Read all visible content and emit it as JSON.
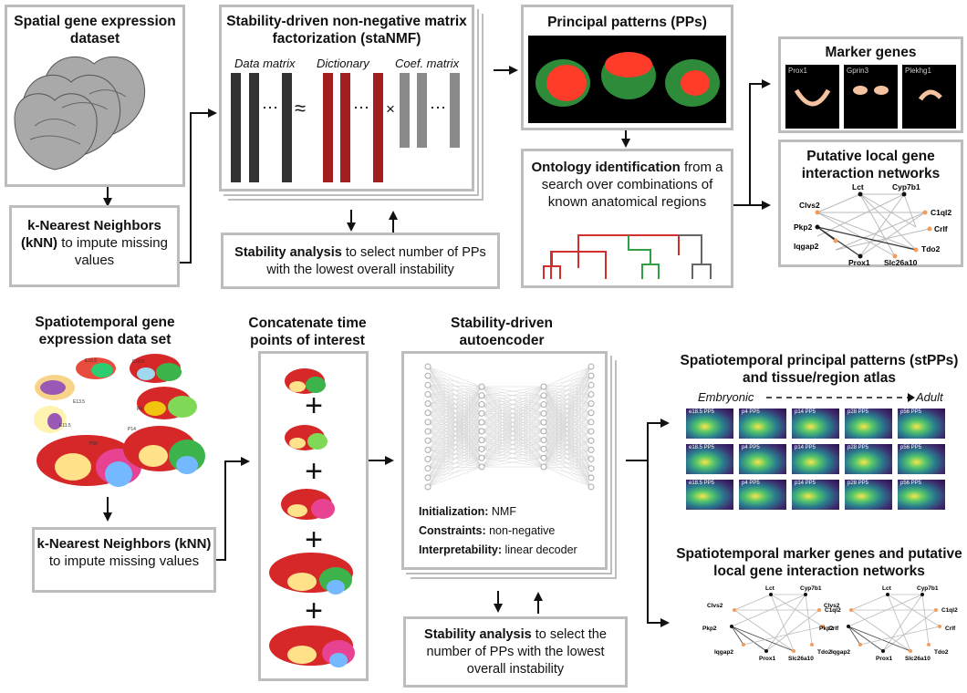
{
  "top": {
    "dataset_title": "Spatial gene expression dataset",
    "knn_bold": "k-Nearest Neighbors (kNN)",
    "knn_rest": "to impute missing values",
    "stanmf_title": "Stability-driven non-negative matrix factorization (staNMF)",
    "labels": {
      "data_matrix": "Data matrix",
      "dictionary": "Dictionary",
      "coef_matrix": "Coef. matrix",
      "approx": "≈",
      "times": "×",
      "dots": "⋯"
    },
    "stability_bold": "Stability analysis",
    "stability_rest": "to select number of PPs with the lowest overall instability",
    "pp_title": "Principal patterns (PPs)",
    "ontology_bold": "Ontology identification",
    "ontology_rest": "from a search over combinations of known anatomical regions",
    "marker_title": "Marker genes",
    "marker_genes": [
      "Prox1",
      "Gprin3",
      "Plekhg1"
    ],
    "network_title": "Putative local gene interaction networks",
    "network_nodes": [
      "Lct",
      "Cyp7b1",
      "Clvs2",
      "C1ql2",
      "Pkp2",
      "Crlf",
      "Iqgap2",
      "Tdo2",
      "Prox1",
      "Slc26a10"
    ]
  },
  "bottom": {
    "dataset_title": "Spatiotemporal gene expression data set",
    "atlas_labels": [
      "E15.5",
      "E18.5",
      "E13.5",
      "P4",
      "E11.5",
      "P14",
      "P56",
      "P28"
    ],
    "knn_bold": "k-Nearest Neighbors (kNN)",
    "knn_rest": "to impute missing values",
    "concat_title": "Concatenate time points of interest",
    "plus": "+",
    "ae_title": "Stability-driven autoencoder",
    "ae_init_bold": "Initialization:",
    "ae_init_val": "NMF",
    "ae_con_bold": "Constraints:",
    "ae_con_val": "non-negative",
    "ae_int_bold": "Interpretability:",
    "ae_int_val": "linear decoder",
    "stability_bold": "Stability analysis",
    "stability_rest": "to select the number of PPs with the lowest overall instability",
    "stpp_title": "Spatiotemporal principal patterns (stPPs) and tissue/region atlas",
    "embryonic": "Embryonic",
    "adult": "Adult",
    "stpp_labels": [
      "e18.5 PP5",
      "p4 PP5",
      "p14 PP5",
      "p28 PP5",
      "p56 PP5"
    ],
    "marker_title": "Spatiotemporal marker genes and putative local gene interaction networks",
    "network_nodes": [
      "Lct",
      "Cyp7b1",
      "Clvs2",
      "C1ql2",
      "Pkp2",
      "Crlf",
      "Iqgap2",
      "Tdo2",
      "Prox1",
      "Slc26a10"
    ]
  },
  "colors": {
    "dark_bar": "#333333",
    "red_bar": "#a31f1f",
    "gray_bar": "#8a8a8a",
    "box_border": "#bdbdbd",
    "green_tree": "#2ea043",
    "red_tree": "#d32f2f"
  }
}
